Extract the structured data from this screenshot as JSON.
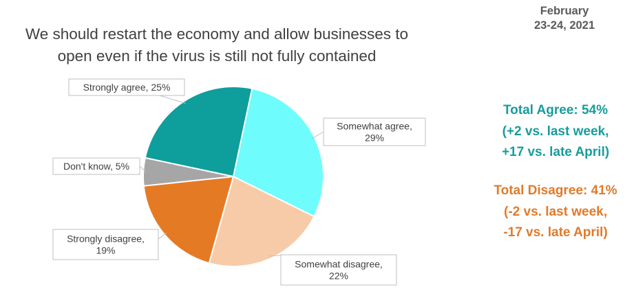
{
  "header": {
    "title_line1": "We should restart the economy and allow businesses to",
    "title_line2": "open even if the virus is still not fully contained",
    "date_line1": "February",
    "date_line2": "23-24, 2021"
  },
  "summary": {
    "agree": {
      "line1": "Total Agree: 54%",
      "line2": "(+2 vs. last week,",
      "line3": "+17 vs. late April)",
      "color": "#179C9C"
    },
    "disagree": {
      "line1": "Total Disagree: 41%",
      "line2": "(-2 vs. last week,",
      "line3": "-17 vs. late April)",
      "color": "#E07A2A"
    }
  },
  "chart_data": {
    "type": "pie",
    "title": "We should restart the economy and allow businesses to open even if the virus is still not fully contained",
    "categories": [
      "Somewhat agree",
      "Somewhat disagree",
      "Strongly disagree",
      "Don't know",
      "Strongly agree"
    ],
    "values": [
      29,
      22,
      19,
      5,
      25
    ],
    "colors": [
      "#6FFCFC",
      "#F7CBA8",
      "#E57A25",
      "#A6A6A6",
      "#0E9E9C"
    ],
    "labels": [
      {
        "line1": "Somewhat agree,",
        "line2": "29%"
      },
      {
        "line1": "Somewhat disagree,",
        "line2": "22%"
      },
      {
        "line1": "Strongly disagree,",
        "line2": "19%"
      },
      {
        "line1": "Don't know, 5%",
        "line2": ""
      },
      {
        "line1": "Strongly agree, 25%",
        "line2": ""
      }
    ]
  }
}
